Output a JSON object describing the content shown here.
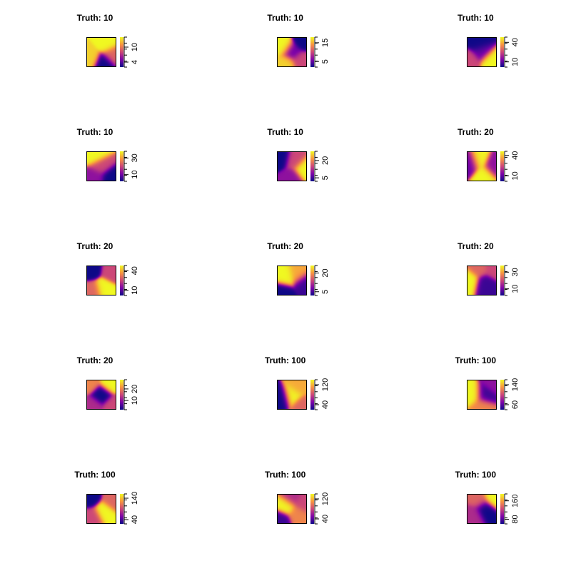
{
  "chart_data": {
    "type": "heatmap",
    "layout": {
      "rows": 5,
      "cols": 3
    },
    "colormap": [
      "#0d0887",
      "#7e03a8",
      "#cc4778",
      "#f89540",
      "#f0f921"
    ],
    "panels": [
      {
        "title": "Truth:  10",
        "ticks": [
          "4",
          "10"
        ],
        "range": [
          2,
          14
        ],
        "blobs": [
          [
            0.7,
            0.2,
            1.0
          ],
          [
            0.1,
            0.7,
            0.9
          ],
          [
            0.6,
            0.9,
            0.0
          ],
          [
            0.9,
            0.6,
            0.6
          ]
        ]
      },
      {
        "title": "Truth:  10",
        "ticks": [
          "5",
          "15"
        ],
        "range": [
          2,
          18
        ],
        "blobs": [
          [
            0.2,
            0.3,
            1.0
          ],
          [
            0.5,
            0.5,
            0.2
          ],
          [
            0.9,
            0.1,
            0.0
          ],
          [
            0.8,
            0.8,
            0.5
          ],
          [
            0.3,
            0.9,
            0.9
          ]
        ]
      },
      {
        "title": "Truth:  10",
        "ticks": [
          "10",
          "40"
        ],
        "range": [
          2,
          48
        ],
        "blobs": [
          [
            0.4,
            0.2,
            0.0
          ],
          [
            0.8,
            0.8,
            1.0
          ],
          [
            0.1,
            0.8,
            0.5
          ],
          [
            0.5,
            0.5,
            0.2
          ]
        ]
      },
      {
        "title": "Truth:  10",
        "ticks": [
          "10",
          "30"
        ],
        "range": [
          2,
          38
        ],
        "blobs": [
          [
            0.3,
            0.1,
            1.0
          ],
          [
            0.8,
            0.9,
            0.0
          ],
          [
            0.3,
            0.9,
            0.3
          ],
          [
            0.5,
            0.5,
            0.5
          ]
        ]
      },
      {
        "title": "Truth:  10",
        "ticks": [
          "5",
          "20"
        ],
        "range": [
          2,
          28
        ],
        "blobs": [
          [
            0.1,
            0.2,
            0.0
          ],
          [
            0.9,
            0.6,
            1.0
          ],
          [
            0.6,
            0.3,
            0.5
          ],
          [
            0.5,
            0.9,
            0.3
          ]
        ]
      },
      {
        "title": "Truth:  20",
        "ticks": [
          "10",
          "40"
        ],
        "range": [
          2,
          46
        ],
        "blobs": [
          [
            0.4,
            0.3,
            1.0
          ],
          [
            0.6,
            0.8,
            1.0
          ],
          [
            0.1,
            0.4,
            0.2
          ],
          [
            0.9,
            0.5,
            0.3
          ]
        ]
      },
      {
        "title": "Truth:  20",
        "ticks": [
          "10",
          "40"
        ],
        "range": [
          2,
          48
        ],
        "blobs": [
          [
            0.1,
            0.1,
            0.0
          ],
          [
            0.6,
            0.8,
            1.0
          ],
          [
            0.9,
            0.2,
            0.5
          ],
          [
            0.2,
            0.9,
            0.6
          ]
        ]
      },
      {
        "title": "Truth:  20",
        "ticks": [
          "5",
          "20"
        ],
        "range": [
          2,
          26
        ],
        "blobs": [
          [
            0.3,
            0.4,
            1.0
          ],
          [
            0.9,
            0.6,
            0.1
          ],
          [
            0.2,
            0.9,
            0.0
          ],
          [
            0.7,
            0.3,
            0.8
          ]
        ]
      },
      {
        "title": "Truth:  20",
        "ticks": [
          "10",
          "30"
        ],
        "range": [
          2,
          38
        ],
        "blobs": [
          [
            0.1,
            0.5,
            1.0
          ],
          [
            0.6,
            0.6,
            0.1
          ],
          [
            0.9,
            0.1,
            0.5
          ],
          [
            0.4,
            0.1,
            0.6
          ]
        ]
      },
      {
        "title": "Truth:  20",
        "ticks": [
          "10",
          "20"
        ],
        "range": [
          2,
          28
        ],
        "blobs": [
          [
            0.5,
            0.5,
            0.0
          ],
          [
            0.1,
            0.1,
            0.7
          ],
          [
            0.8,
            0.1,
            1.0
          ],
          [
            0.9,
            0.9,
            0.5
          ],
          [
            0.2,
            0.9,
            0.4
          ]
        ]
      },
      {
        "title": "Truth:  100",
        "ticks": [
          "40",
          "120"
        ],
        "range": [
          20,
          140
        ],
        "blobs": [
          [
            0.5,
            0.5,
            1.0
          ],
          [
            0.1,
            0.6,
            0.0
          ],
          [
            0.7,
            0.2,
            0.8
          ],
          [
            0.9,
            0.9,
            0.6
          ]
        ]
      },
      {
        "title": "Truth:  100",
        "ticks": [
          "60",
          "140"
        ],
        "range": [
          40,
          160
        ],
        "blobs": [
          [
            0.2,
            0.5,
            1.0
          ],
          [
            0.6,
            0.5,
            0.1
          ],
          [
            0.9,
            0.1,
            0.3
          ],
          [
            0.5,
            0.9,
            0.7
          ]
        ]
      },
      {
        "title": "Truth:  100",
        "ticks": [
          "40",
          "140"
        ],
        "range": [
          20,
          160
        ],
        "blobs": [
          [
            0.6,
            0.6,
            1.0
          ],
          [
            0.1,
            0.1,
            0.0
          ],
          [
            0.9,
            0.2,
            0.6
          ],
          [
            0.2,
            0.8,
            0.5
          ]
        ]
      },
      {
        "title": "Truth:  100",
        "ticks": [
          "40",
          "120"
        ],
        "range": [
          20,
          140
        ],
        "blobs": [
          [
            0.3,
            0.4,
            1.0
          ],
          [
            0.7,
            0.7,
            0.7
          ],
          [
            0.1,
            0.9,
            0.1
          ],
          [
            0.9,
            0.3,
            0.5
          ],
          [
            0.5,
            0.1,
            0.4
          ]
        ]
      },
      {
        "title": "Truth:  100",
        "ticks": [
          "80",
          "160"
        ],
        "range": [
          60,
          190
        ],
        "blobs": [
          [
            0.9,
            0.1,
            1.0
          ],
          [
            0.6,
            0.5,
            0.0
          ],
          [
            0.2,
            0.7,
            0.4
          ],
          [
            0.4,
            0.2,
            0.6
          ]
        ]
      }
    ]
  }
}
